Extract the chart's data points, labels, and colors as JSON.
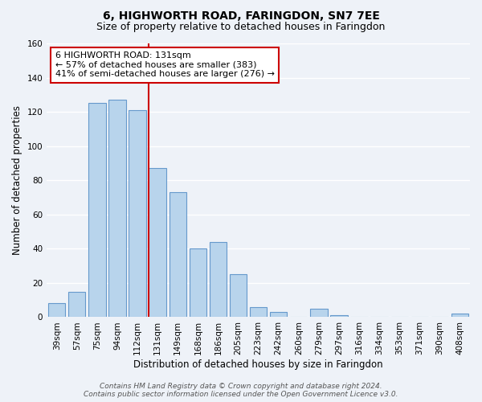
{
  "title": "6, HIGHWORTH ROAD, FARINGDON, SN7 7EE",
  "subtitle": "Size of property relative to detached houses in Faringdon",
  "xlabel": "Distribution of detached houses by size in Faringdon",
  "ylabel": "Number of detached properties",
  "bar_labels": [
    "39sqm",
    "57sqm",
    "75sqm",
    "94sqm",
    "112sqm",
    "131sqm",
    "149sqm",
    "168sqm",
    "186sqm",
    "205sqm",
    "223sqm",
    "242sqm",
    "260sqm",
    "279sqm",
    "297sqm",
    "316sqm",
    "334sqm",
    "353sqm",
    "371sqm",
    "390sqm",
    "408sqm"
  ],
  "bar_heights": [
    8,
    15,
    125,
    127,
    121,
    87,
    73,
    40,
    44,
    25,
    6,
    3,
    0,
    5,
    1,
    0,
    0,
    0,
    0,
    0,
    2
  ],
  "bar_color": "#b8d4ec",
  "bar_edge_color": "#6699cc",
  "highlight_index": 5,
  "highlight_line_color": "#cc0000",
  "annotation_title": "6 HIGHWORTH ROAD: 131sqm",
  "annotation_line1": "← 57% of detached houses are smaller (383)",
  "annotation_line2": "41% of semi-detached houses are larger (276) →",
  "annotation_box_color": "#ffffff",
  "annotation_box_edge": "#cc0000",
  "ylim": [
    0,
    160
  ],
  "yticks": [
    0,
    20,
    40,
    60,
    80,
    100,
    120,
    140,
    160
  ],
  "footer_line1": "Contains HM Land Registry data © Crown copyright and database right 2024.",
  "footer_line2": "Contains public sector information licensed under the Open Government Licence v3.0.",
  "background_color": "#eef2f8",
  "grid_color": "#ffffff",
  "title_fontsize": 10,
  "subtitle_fontsize": 9,
  "axis_label_fontsize": 8.5,
  "tick_fontsize": 7.5,
  "footer_fontsize": 6.5,
  "annotation_fontsize": 8
}
